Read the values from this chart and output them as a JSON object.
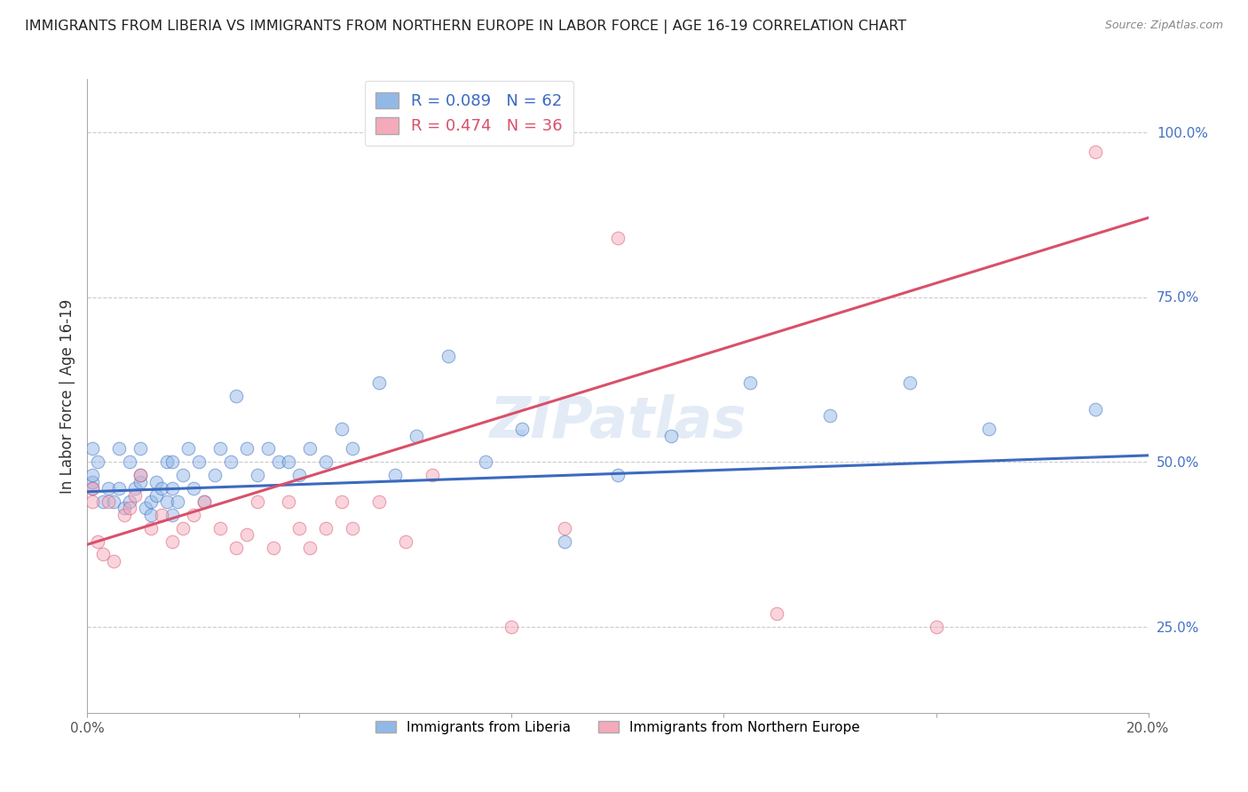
{
  "title": "IMMIGRANTS FROM LIBERIA VS IMMIGRANTS FROM NORTHERN EUROPE IN LABOR FORCE | AGE 16-19 CORRELATION CHART",
  "source": "Source: ZipAtlas.com",
  "ylabel": "In Labor Force | Age 16-19",
  "xlim": [
    0.0,
    0.2
  ],
  "ylim": [
    0.12,
    1.08
  ],
  "x_ticks": [
    0.0,
    0.04,
    0.08,
    0.12,
    0.16,
    0.2
  ],
  "x_tick_labels": [
    "0.0%",
    "",
    "",
    "",
    "",
    "20.0%"
  ],
  "y_ticks": [
    0.25,
    0.5,
    0.75,
    1.0
  ],
  "y_tick_labels": [
    "25.0%",
    "50.0%",
    "75.0%",
    "100.0%"
  ],
  "blue_R": 0.089,
  "blue_N": 62,
  "pink_R": 0.474,
  "pink_N": 36,
  "blue_color": "#92b8e8",
  "pink_color": "#f5aabb",
  "blue_line_color": "#3b6abf",
  "pink_line_color": "#d9506a",
  "watermark": "ZIPatlas",
  "blue_scatter_x": [
    0.001,
    0.001,
    0.001,
    0.001,
    0.002,
    0.003,
    0.004,
    0.005,
    0.006,
    0.006,
    0.007,
    0.008,
    0.008,
    0.009,
    0.01,
    0.01,
    0.01,
    0.011,
    0.012,
    0.012,
    0.013,
    0.013,
    0.014,
    0.015,
    0.015,
    0.016,
    0.016,
    0.016,
    0.017,
    0.018,
    0.019,
    0.02,
    0.021,
    0.022,
    0.024,
    0.025,
    0.027,
    0.028,
    0.03,
    0.032,
    0.034,
    0.036,
    0.038,
    0.04,
    0.042,
    0.045,
    0.048,
    0.05,
    0.055,
    0.058,
    0.062,
    0.068,
    0.075,
    0.082,
    0.09,
    0.1,
    0.11,
    0.125,
    0.14,
    0.155,
    0.17,
    0.19
  ],
  "blue_scatter_y": [
    0.46,
    0.47,
    0.48,
    0.52,
    0.5,
    0.44,
    0.46,
    0.44,
    0.46,
    0.52,
    0.43,
    0.44,
    0.5,
    0.46,
    0.47,
    0.48,
    0.52,
    0.43,
    0.42,
    0.44,
    0.45,
    0.47,
    0.46,
    0.44,
    0.5,
    0.42,
    0.46,
    0.5,
    0.44,
    0.48,
    0.52,
    0.46,
    0.5,
    0.44,
    0.48,
    0.52,
    0.5,
    0.6,
    0.52,
    0.48,
    0.52,
    0.5,
    0.5,
    0.48,
    0.52,
    0.5,
    0.55,
    0.52,
    0.62,
    0.48,
    0.54,
    0.66,
    0.5,
    0.55,
    0.38,
    0.48,
    0.54,
    0.62,
    0.57,
    0.62,
    0.55,
    0.58
  ],
  "pink_scatter_x": [
    0.001,
    0.001,
    0.002,
    0.003,
    0.004,
    0.005,
    0.007,
    0.008,
    0.009,
    0.01,
    0.012,
    0.014,
    0.016,
    0.018,
    0.02,
    0.022,
    0.025,
    0.028,
    0.03,
    0.032,
    0.035,
    0.038,
    0.04,
    0.042,
    0.045,
    0.048,
    0.05,
    0.055,
    0.06,
    0.065,
    0.08,
    0.09,
    0.1,
    0.13,
    0.16,
    0.19
  ],
  "pink_scatter_y": [
    0.46,
    0.44,
    0.38,
    0.36,
    0.44,
    0.35,
    0.42,
    0.43,
    0.45,
    0.48,
    0.4,
    0.42,
    0.38,
    0.4,
    0.42,
    0.44,
    0.4,
    0.37,
    0.39,
    0.44,
    0.37,
    0.44,
    0.4,
    0.37,
    0.4,
    0.44,
    0.4,
    0.44,
    0.38,
    0.48,
    0.25,
    0.4,
    0.84,
    0.27,
    0.25,
    0.97
  ],
  "blue_line_x": [
    0.0,
    0.2
  ],
  "blue_line_y": [
    0.455,
    0.51
  ],
  "pink_line_x": [
    0.0,
    0.2
  ],
  "pink_line_y": [
    0.375,
    0.87
  ],
  "grid_color": "#cccccc",
  "background_color": "#ffffff",
  "dot_size": 110,
  "dot_alpha": 0.5,
  "dot_edgewidth": 0.8
}
